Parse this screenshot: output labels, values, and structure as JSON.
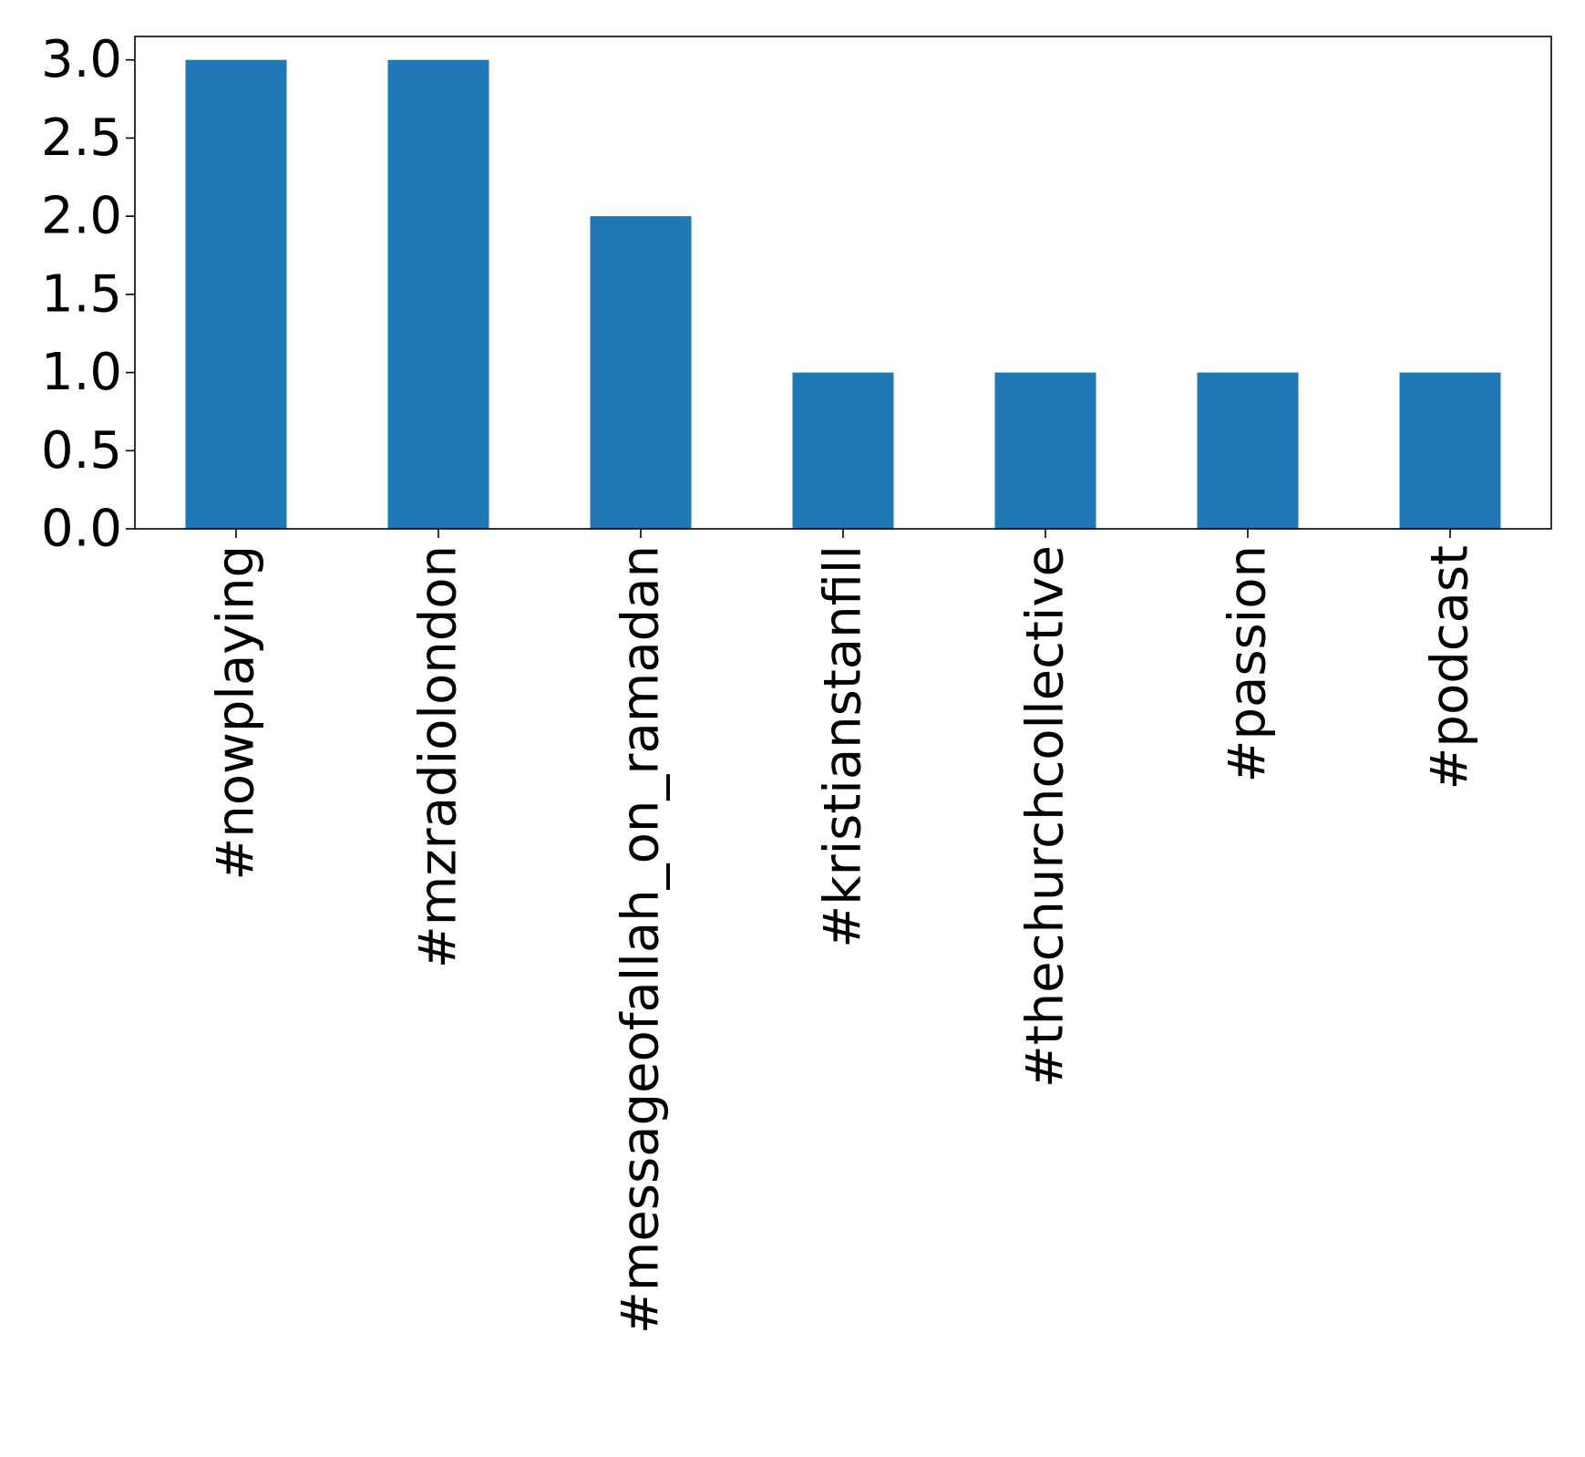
{
  "chart_data": {
    "type": "bar",
    "title": "",
    "xlabel": "",
    "ylabel": "",
    "categories": [
      "#nowplaying",
      "#mzradiolondon",
      "#messageofallah_on_ramadan",
      "#kristianstanfill",
      "#thechurchcollective",
      "#passion",
      "#podcast"
    ],
    "values": [
      3,
      3,
      2,
      1,
      1,
      1,
      1
    ],
    "ylim": [
      0,
      3.15
    ],
    "yticks": [
      0.0,
      0.5,
      1.0,
      1.5,
      2.0,
      2.5,
      3.0
    ],
    "ytick_labels": [
      "0.0",
      "0.5",
      "1.0",
      "1.5",
      "2.0",
      "2.5",
      "3.0"
    ],
    "grid": false,
    "legend": "none",
    "colors": {
      "bar": "#1f77b4",
      "axis": "#000000",
      "background": "#ffffff"
    }
  }
}
